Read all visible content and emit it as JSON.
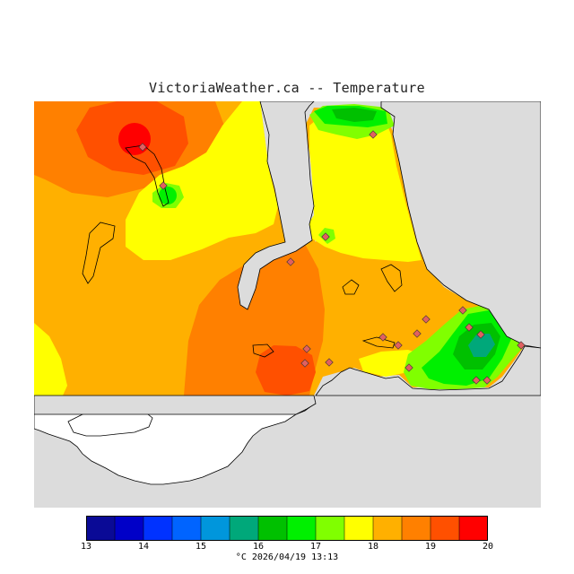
{
  "title": "VictoriaWeather.ca -- Temperature",
  "map": {
    "layer": "temperature",
    "background_color": "#dcdcdc",
    "land_mask_color": "#ffffff",
    "station_marker_color": "#e06060"
  },
  "legend": {
    "unit": "°C",
    "min": 13,
    "max": 20,
    "tick_labels": [
      "13",
      "14",
      "15",
      "16",
      "17",
      "18",
      "19",
      "20"
    ],
    "colors": [
      "#0a0a96",
      "#0000c8",
      "#0032ff",
      "#0064ff",
      "#0096dc",
      "#00a87a",
      "#00c000",
      "#00f000",
      "#80ff00",
      "#ffff00",
      "#ffb000",
      "#ff8000",
      "#ff5000",
      "#ff0000"
    ]
  },
  "footer": {
    "unit": "°C",
    "timestamp": "2026/04/19 13:13"
  }
}
